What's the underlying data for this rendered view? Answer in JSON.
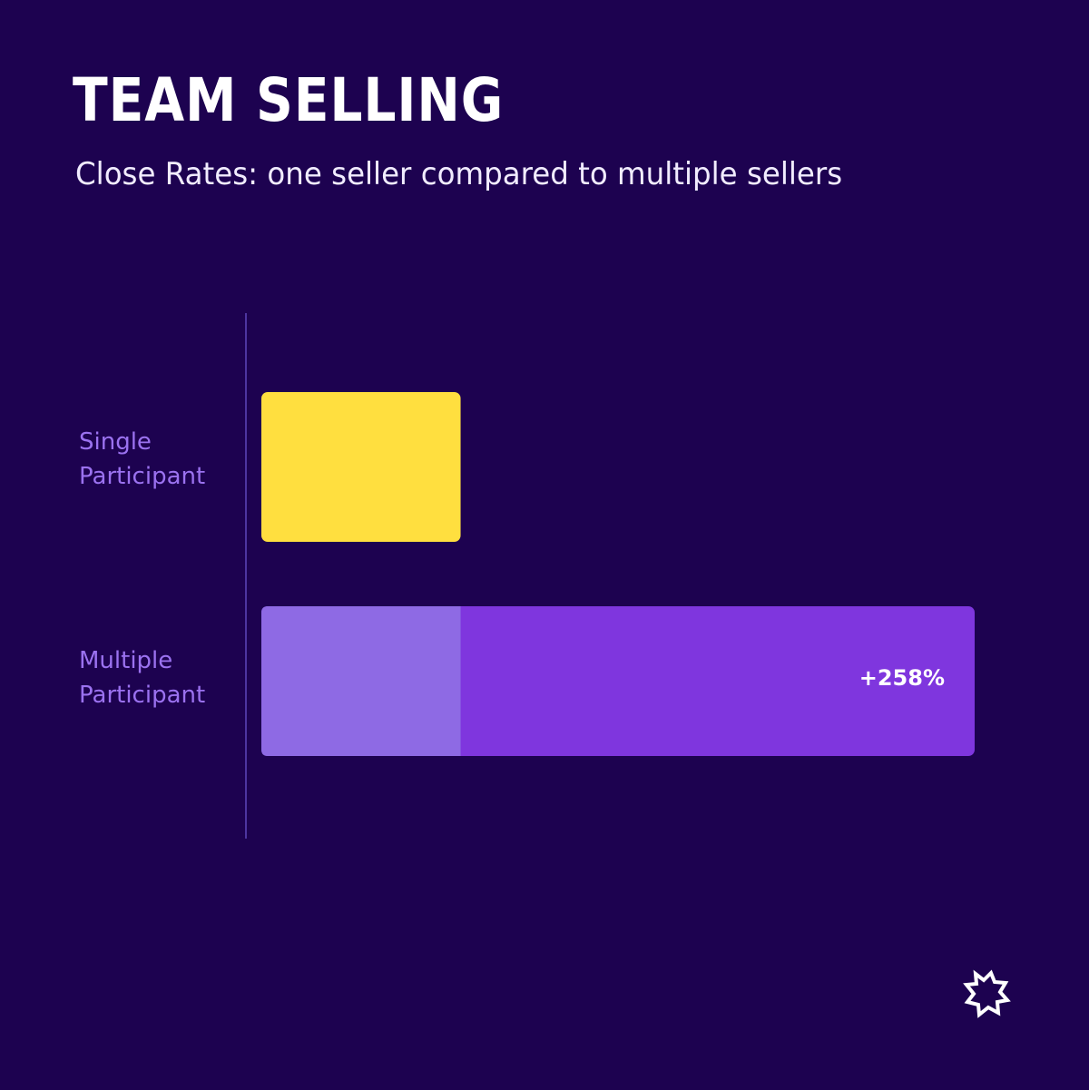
{
  "title": "TEAM SELLING",
  "subtitle": "Close Rates: one seller compared to multiple sellers",
  "colors": {
    "background": "#1d0250",
    "single_bar": "#ffdf3f",
    "multiple_bar": "#7f36de",
    "multiple_base": "#8e6ae4",
    "label": "#9b72f0",
    "axis": "#4d35a0"
  },
  "logo": {
    "icon": "starburst-logo-icon"
  },
  "chart_data": {
    "type": "bar",
    "orientation": "horizontal",
    "categories": [
      "Single\nParticipant",
      "Multiple\nParticipant"
    ],
    "values": [
      1,
      3.58
    ],
    "baseline_segment": 1,
    "annotations": [
      {
        "category_index": 1,
        "text": "+258%"
      }
    ],
    "xlim": [
      0,
      3.58
    ],
    "grid": false,
    "legend": "none"
  }
}
